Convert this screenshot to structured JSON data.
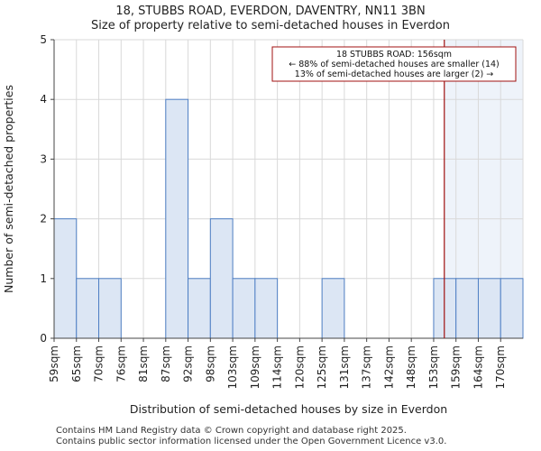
{
  "chart_data": {
    "type": "bar",
    "title": "18, STUBBS ROAD, EVERDON, DAVENTRY, NN11 3BN",
    "subtitle": "Size of property relative to semi-detached houses in Everdon",
    "xlabel": "Distribution of semi-detached houses by size in Everdon",
    "ylabel": "Number of semi-detached properties",
    "categories": [
      "59sqm",
      "65sqm",
      "70sqm",
      "76sqm",
      "81sqm",
      "87sqm",
      "92sqm",
      "98sqm",
      "103sqm",
      "109sqm",
      "114sqm",
      "120sqm",
      "125sqm",
      "131sqm",
      "137sqm",
      "142sqm",
      "148sqm",
      "153sqm",
      "159sqm",
      "164sqm",
      "170sqm"
    ],
    "values": [
      2,
      1,
      1,
      0,
      0,
      4,
      1,
      2,
      1,
      1,
      0,
      0,
      1,
      0,
      0,
      0,
      0,
      1,
      1,
      1,
      1
    ],
    "ylim": [
      0,
      5
    ],
    "yticks": [
      0,
      1,
      2,
      3,
      4,
      5
    ],
    "marker": {
      "value": 156,
      "label": "18 STUBBS ROAD: 156sqm"
    },
    "annotation": {
      "line1": "18 STUBBS ROAD: 156sqm",
      "line2": "← 88% of semi-detached houses are smaller (14)",
      "line3": "13% of semi-detached houses are larger (2) →"
    },
    "colors": {
      "bar_fill": "#dce6f4",
      "bar_edge": "#4f7fc4",
      "marker": "#a01010",
      "highlight": "#eef3fa"
    }
  },
  "footer": {
    "line1": "Contains HM Land Registry data © Crown copyright and database right 2025.",
    "line2": "Contains public sector information licensed under the Open Government Licence v3.0."
  }
}
